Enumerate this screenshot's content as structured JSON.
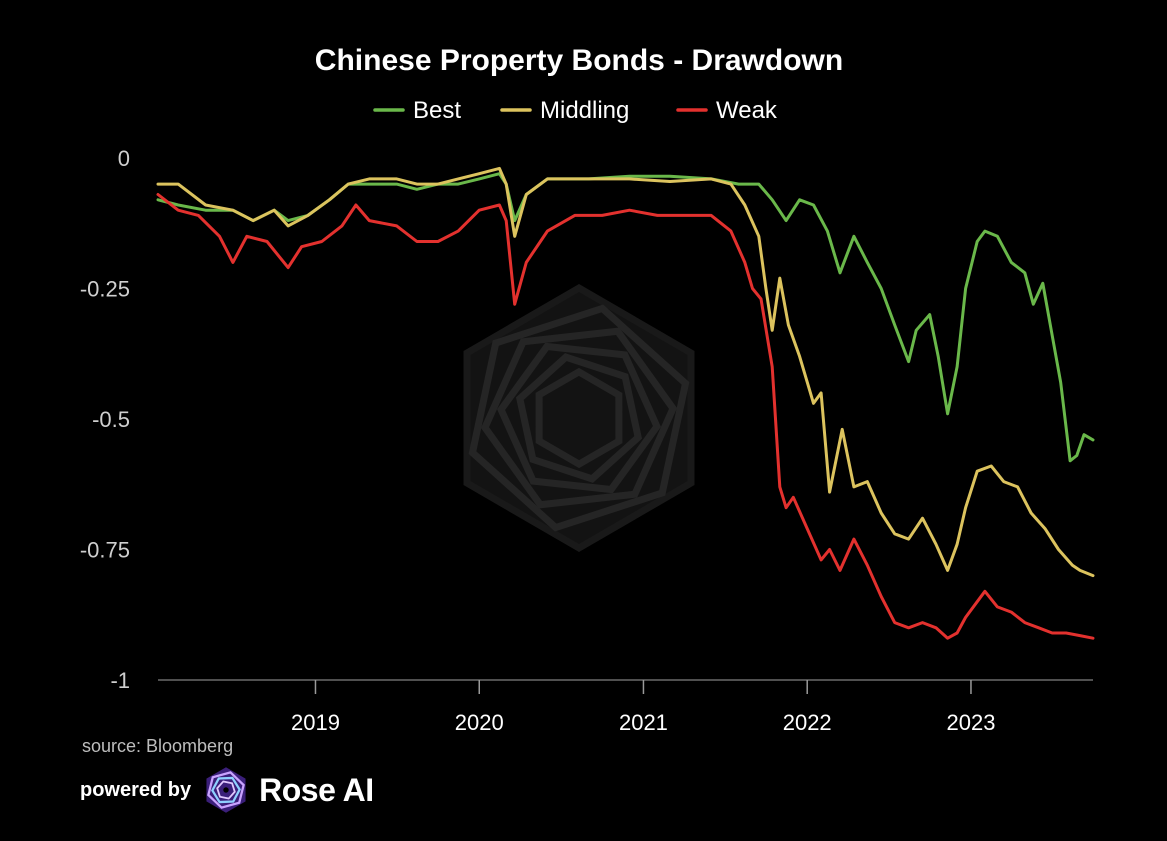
{
  "chart_data": {
    "type": "line",
    "title": "Chinese Property Bonds - Drawdown",
    "legend_position": "top-center",
    "ylim": [
      -1,
      0
    ],
    "xlim": [
      "2018-01-15",
      "2023-09-30"
    ],
    "y_ticks": [
      {
        "value": 0,
        "label": "0"
      },
      {
        "value": -0.25,
        "label": "-0.25"
      },
      {
        "value": -0.5,
        "label": "-0.5"
      },
      {
        "value": -0.75,
        "label": "-0.75"
      },
      {
        "value": -1,
        "label": "-1"
      }
    ],
    "x_ticks": [
      {
        "value": "2019-01-01",
        "label": "2019"
      },
      {
        "value": "2020-01-01",
        "label": "2020"
      },
      {
        "value": "2021-01-01",
        "label": "2021"
      },
      {
        "value": "2022-01-01",
        "label": "2022"
      },
      {
        "value": "2023-01-01",
        "label": "2023"
      }
    ],
    "grid": false,
    "series": [
      {
        "name": "Best",
        "color": "#6ab84a",
        "points": [
          [
            "2018-01-15",
            -0.08
          ],
          [
            "2018-03-01",
            -0.09
          ],
          [
            "2018-05-01",
            -0.1
          ],
          [
            "2018-07-01",
            -0.1
          ],
          [
            "2018-08-15",
            -0.12
          ],
          [
            "2018-10-01",
            -0.1
          ],
          [
            "2018-11-01",
            -0.12
          ],
          [
            "2018-12-15",
            -0.11
          ],
          [
            "2019-02-01",
            -0.08
          ],
          [
            "2019-03-15",
            -0.05
          ],
          [
            "2019-05-01",
            -0.05
          ],
          [
            "2019-07-01",
            -0.05
          ],
          [
            "2019-08-15",
            -0.06
          ],
          [
            "2019-10-01",
            -0.05
          ],
          [
            "2019-11-15",
            -0.05
          ],
          [
            "2020-01-01",
            -0.04
          ],
          [
            "2020-02-15",
            -0.03
          ],
          [
            "2020-03-01",
            -0.05
          ],
          [
            "2020-03-20",
            -0.12
          ],
          [
            "2020-04-15",
            -0.07
          ],
          [
            "2020-06-01",
            -0.04
          ],
          [
            "2020-09-01",
            -0.04
          ],
          [
            "2020-12-01",
            -0.035
          ],
          [
            "2021-03-01",
            -0.035
          ],
          [
            "2021-06-01",
            -0.04
          ],
          [
            "2021-08-01",
            -0.05
          ],
          [
            "2021-09-15",
            -0.05
          ],
          [
            "2021-10-15",
            -0.08
          ],
          [
            "2021-11-15",
            -0.12
          ],
          [
            "2021-12-15",
            -0.08
          ],
          [
            "2022-01-15",
            -0.09
          ],
          [
            "2022-02-15",
            -0.14
          ],
          [
            "2022-03-15",
            -0.22
          ],
          [
            "2022-04-15",
            -0.15
          ],
          [
            "2022-05-15",
            -0.2
          ],
          [
            "2022-06-15",
            -0.25
          ],
          [
            "2022-07-15",
            -0.32
          ],
          [
            "2022-08-15",
            -0.39
          ],
          [
            "2022-09-01",
            -0.33
          ],
          [
            "2022-10-01",
            -0.3
          ],
          [
            "2022-10-20",
            -0.38
          ],
          [
            "2022-11-10",
            -0.49
          ],
          [
            "2022-12-01",
            -0.4
          ],
          [
            "2022-12-20",
            -0.25
          ],
          [
            "2023-01-15",
            -0.16
          ],
          [
            "2023-02-01",
            -0.14
          ],
          [
            "2023-03-01",
            -0.15
          ],
          [
            "2023-04-01",
            -0.2
          ],
          [
            "2023-05-01",
            -0.22
          ],
          [
            "2023-05-20",
            -0.28
          ],
          [
            "2023-06-10",
            -0.24
          ],
          [
            "2023-07-01",
            -0.34
          ],
          [
            "2023-07-20",
            -0.43
          ],
          [
            "2023-08-10",
            -0.58
          ],
          [
            "2023-08-25",
            -0.57
          ],
          [
            "2023-09-10",
            -0.53
          ],
          [
            "2023-09-30",
            -0.54
          ]
        ]
      },
      {
        "name": "Middling",
        "color": "#dcc35e",
        "points": [
          [
            "2018-01-15",
            -0.05
          ],
          [
            "2018-03-01",
            -0.05
          ],
          [
            "2018-05-01",
            -0.09
          ],
          [
            "2018-07-01",
            -0.1
          ],
          [
            "2018-08-15",
            -0.12
          ],
          [
            "2018-10-01",
            -0.1
          ],
          [
            "2018-11-01",
            -0.13
          ],
          [
            "2018-12-15",
            -0.11
          ],
          [
            "2019-02-01",
            -0.08
          ],
          [
            "2019-03-15",
            -0.05
          ],
          [
            "2019-05-01",
            -0.04
          ],
          [
            "2019-07-01",
            -0.04
          ],
          [
            "2019-08-15",
            -0.05
          ],
          [
            "2019-10-01",
            -0.05
          ],
          [
            "2019-11-15",
            -0.04
          ],
          [
            "2020-01-01",
            -0.03
          ],
          [
            "2020-02-15",
            -0.02
          ],
          [
            "2020-03-01",
            -0.05
          ],
          [
            "2020-03-20",
            -0.15
          ],
          [
            "2020-04-15",
            -0.07
          ],
          [
            "2020-06-01",
            -0.04
          ],
          [
            "2020-09-01",
            -0.04
          ],
          [
            "2020-12-01",
            -0.04
          ],
          [
            "2021-03-01",
            -0.045
          ],
          [
            "2021-06-01",
            -0.04
          ],
          [
            "2021-07-15",
            -0.05
          ],
          [
            "2021-08-15",
            -0.09
          ],
          [
            "2021-09-15",
            -0.15
          ],
          [
            "2021-10-01",
            -0.25
          ],
          [
            "2021-10-15",
            -0.33
          ],
          [
            "2021-11-01",
            -0.23
          ],
          [
            "2021-11-20",
            -0.32
          ],
          [
            "2021-12-15",
            -0.38
          ],
          [
            "2022-01-15",
            -0.47
          ],
          [
            "2022-02-01",
            -0.45
          ],
          [
            "2022-02-20",
            -0.64
          ],
          [
            "2022-03-20",
            -0.52
          ],
          [
            "2022-04-15",
            -0.63
          ],
          [
            "2022-05-15",
            -0.62
          ],
          [
            "2022-06-15",
            -0.68
          ],
          [
            "2022-07-15",
            -0.72
          ],
          [
            "2022-08-15",
            -0.73
          ],
          [
            "2022-09-15",
            -0.69
          ],
          [
            "2022-10-15",
            -0.74
          ],
          [
            "2022-11-10",
            -0.79
          ],
          [
            "2022-12-01",
            -0.74
          ],
          [
            "2022-12-20",
            -0.67
          ],
          [
            "2023-01-15",
            -0.6
          ],
          [
            "2023-02-15",
            -0.59
          ],
          [
            "2023-03-15",
            -0.62
          ],
          [
            "2023-04-15",
            -0.63
          ],
          [
            "2023-05-15",
            -0.68
          ],
          [
            "2023-06-15",
            -0.71
          ],
          [
            "2023-07-15",
            -0.75
          ],
          [
            "2023-08-15",
            -0.78
          ],
          [
            "2023-09-01",
            -0.79
          ],
          [
            "2023-09-30",
            -0.8
          ]
        ]
      },
      {
        "name": "Weak",
        "color": "#e3312e",
        "points": [
          [
            "2018-01-15",
            -0.07
          ],
          [
            "2018-03-01",
            -0.1
          ],
          [
            "2018-04-15",
            -0.11
          ],
          [
            "2018-06-01",
            -0.15
          ],
          [
            "2018-07-01",
            -0.2
          ],
          [
            "2018-08-01",
            -0.15
          ],
          [
            "2018-09-15",
            -0.16
          ],
          [
            "2018-11-01",
            -0.21
          ],
          [
            "2018-12-01",
            -0.17
          ],
          [
            "2019-01-15",
            -0.16
          ],
          [
            "2019-03-01",
            -0.13
          ],
          [
            "2019-04-01",
            -0.09
          ],
          [
            "2019-05-01",
            -0.12
          ],
          [
            "2019-07-01",
            -0.13
          ],
          [
            "2019-08-15",
            -0.16
          ],
          [
            "2019-10-01",
            -0.16
          ],
          [
            "2019-11-15",
            -0.14
          ],
          [
            "2020-01-01",
            -0.1
          ],
          [
            "2020-02-15",
            -0.09
          ],
          [
            "2020-03-01",
            -0.12
          ],
          [
            "2020-03-20",
            -0.28
          ],
          [
            "2020-04-15",
            -0.2
          ],
          [
            "2020-06-01",
            -0.14
          ],
          [
            "2020-08-01",
            -0.11
          ],
          [
            "2020-10-01",
            -0.11
          ],
          [
            "2020-12-01",
            -0.1
          ],
          [
            "2021-02-01",
            -0.11
          ],
          [
            "2021-04-01",
            -0.11
          ],
          [
            "2021-06-01",
            -0.11
          ],
          [
            "2021-07-15",
            -0.14
          ],
          [
            "2021-08-15",
            -0.2
          ],
          [
            "2021-09-01",
            -0.25
          ],
          [
            "2021-09-20",
            -0.27
          ],
          [
            "2021-10-15",
            -0.4
          ],
          [
            "2021-11-01",
            -0.63
          ],
          [
            "2021-11-15",
            -0.67
          ],
          [
            "2021-12-01",
            -0.65
          ],
          [
            "2022-01-01",
            -0.71
          ],
          [
            "2022-02-01",
            -0.77
          ],
          [
            "2022-02-20",
            -0.75
          ],
          [
            "2022-03-15",
            -0.79
          ],
          [
            "2022-04-15",
            -0.73
          ],
          [
            "2022-05-15",
            -0.78
          ],
          [
            "2022-06-15",
            -0.84
          ],
          [
            "2022-07-15",
            -0.89
          ],
          [
            "2022-08-15",
            -0.9
          ],
          [
            "2022-09-15",
            -0.89
          ],
          [
            "2022-10-15",
            -0.9
          ],
          [
            "2022-11-10",
            -0.92
          ],
          [
            "2022-12-01",
            -0.91
          ],
          [
            "2022-12-20",
            -0.88
          ],
          [
            "2023-01-15",
            -0.85
          ],
          [
            "2023-02-01",
            -0.83
          ],
          [
            "2023-03-01",
            -0.86
          ],
          [
            "2023-04-01",
            -0.87
          ],
          [
            "2023-05-01",
            -0.89
          ],
          [
            "2023-06-01",
            -0.9
          ],
          [
            "2023-07-01",
            -0.91
          ],
          [
            "2023-08-01",
            -0.91
          ],
          [
            "2023-09-01",
            -0.915
          ],
          [
            "2023-09-30",
            -0.92
          ]
        ]
      }
    ]
  },
  "footer": {
    "source": "source: Bloomberg",
    "powered_by": "powered by",
    "brand": "Rose AI"
  }
}
